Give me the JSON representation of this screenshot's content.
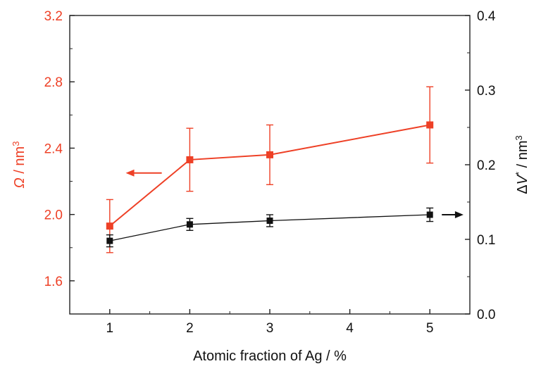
{
  "chart_data": {
    "type": "line",
    "xlabel": "Atomic fraction of Ag / %",
    "x_ticks": [
      "1",
      "2",
      "3",
      "4",
      "5"
    ],
    "xlim": [
      0.5,
      5.5
    ],
    "y_left": {
      "label_symbol": "Ω",
      "label_text": " / nm",
      "label_sup": "3",
      "lim": [
        1.4,
        3.2
      ],
      "ticks": [
        "1.6",
        "2.0",
        "2.4",
        "2.8",
        "3.2"
      ],
      "color": "#ee4026"
    },
    "y_right": {
      "label_prefix": "Δ",
      "label_symbol": "V",
      "label_sup_star": "*",
      "label_text": " / nm",
      "label_sup": "3",
      "lim": [
        0.0,
        0.4
      ],
      "ticks": [
        "0.0",
        "0.1",
        "0.2",
        "0.3",
        "0.4"
      ],
      "color": "#111111"
    },
    "series": [
      {
        "axis": "left",
        "color": "#ee4026",
        "marker": "square",
        "x": [
          1,
          2,
          3,
          5
        ],
        "y": [
          1.93,
          2.33,
          2.36,
          2.54
        ],
        "err": [
          0.16,
          0.19,
          0.18,
          0.23
        ]
      },
      {
        "axis": "right",
        "color": "#111111",
        "marker": "square",
        "x": [
          1,
          2,
          3,
          5
        ],
        "y": [
          0.098,
          0.12,
          0.125,
          0.133
        ],
        "err": [
          0.008,
          0.008,
          0.008,
          0.009
        ]
      }
    ],
    "annotations": [
      {
        "type": "arrow",
        "axis": "left",
        "direction": "left",
        "x_from": 1.65,
        "x_to": 1.2,
        "y": 2.25,
        "color": "#ee4026"
      },
      {
        "type": "arrow",
        "axis": "right",
        "direction": "right",
        "x_from": 5.15,
        "x_to": 5.42,
        "y": 0.133,
        "color": "#111111"
      }
    ]
  }
}
